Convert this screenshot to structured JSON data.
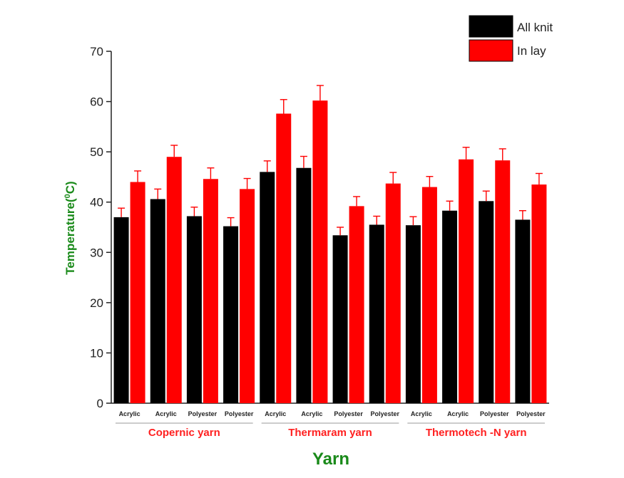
{
  "chart_data": {
    "type": "bar",
    "title": "",
    "xlabel": "Yarn",
    "ylabel_main": "Temperature(",
    "ylabel_sup": "0",
    "ylabel_end": "C)",
    "ylim": [
      0,
      70
    ],
    "yticks": [
      "0",
      "10",
      "20",
      "30",
      "40",
      "50",
      "60",
      "70"
    ],
    "categories": [
      "Acrylic",
      "Acrylic",
      "Polyester",
      "Polyester",
      "Acrylic",
      "Acrylic",
      "Polyester",
      "Polyester",
      "Acrylic",
      "Acrylic",
      "Polyester",
      "Polyester"
    ],
    "groups": [
      {
        "label": "Copernic yarn",
        "span": [
          0,
          3
        ]
      },
      {
        "label": "Thermaram yarn",
        "span": [
          4,
          7
        ]
      },
      {
        "label": "Thermotech -N yarn",
        "span": [
          8,
          11
        ]
      }
    ],
    "series": [
      {
        "name": "All knit",
        "color": "#000000",
        "values": [
          37.0,
          40.6,
          37.2,
          35.2,
          46.0,
          46.8,
          33.4,
          35.5,
          35.4,
          38.3,
          40.2,
          36.5
        ],
        "errors": [
          1.8,
          2.0,
          1.8,
          1.7,
          2.2,
          2.3,
          1.6,
          1.7,
          1.7,
          1.9,
          2.0,
          1.8
        ]
      },
      {
        "name": "In lay",
        "color": "#ff0000",
        "values": [
          44.0,
          49.0,
          44.6,
          42.6,
          57.6,
          60.2,
          39.2,
          43.7,
          43.0,
          48.5,
          48.3,
          43.5
        ],
        "errors": [
          2.2,
          2.3,
          2.2,
          2.1,
          2.8,
          3.0,
          1.9,
          2.2,
          2.1,
          2.4,
          2.3,
          2.2
        ]
      }
    ],
    "legend_position": "top-right",
    "grid": false,
    "colors": {
      "error_bar": "#ff0000",
      "group_label": "#ff2020",
      "axis_label": "#1a8a1a",
      "group_line": "#999999"
    }
  }
}
